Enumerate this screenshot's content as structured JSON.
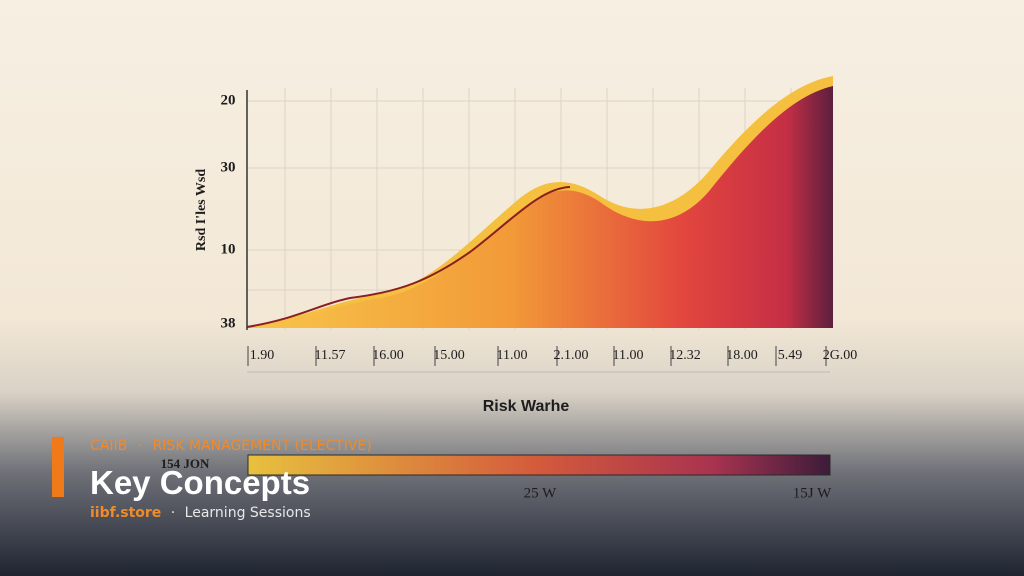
{
  "chart": {
    "y_labels": [
      "20",
      "30",
      "10",
      "38"
    ],
    "y_axis_title": "Rsd I'les Wsd",
    "x_labels": [
      "1.90",
      "11.57",
      "16.00",
      "15.00",
      "11.00",
      "2.1.00",
      "11.00",
      "12.32",
      "18.00",
      "5.49",
      "2G.00"
    ],
    "x_axis_title": "Risk Warhe",
    "legend": {
      "left": "154 JON",
      "middle": "25 W",
      "right": "15J W"
    }
  },
  "overlay": {
    "course": "CAIIB",
    "separator": "·",
    "subject": "RISK MANAGEMENT (ELECTIVE)",
    "title": "Key Concepts",
    "site": "iibf.store",
    "separator2": "·",
    "tagline": "Learning Sessions"
  }
}
